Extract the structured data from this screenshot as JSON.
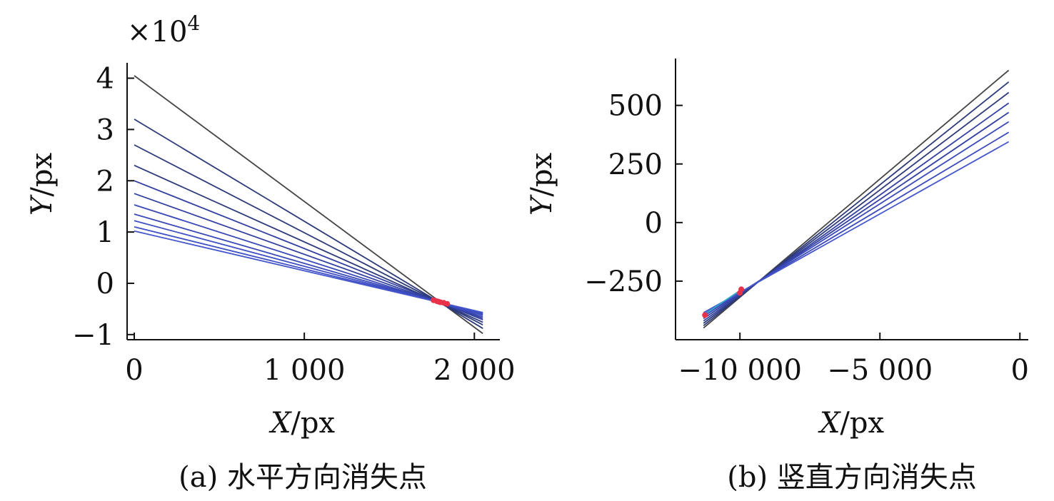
{
  "chart_data": [
    {
      "type": "line",
      "caption": "(a) 水平方向消失点",
      "xlabel_var": "X",
      "xlabel_unit": "/px",
      "ylabel_var": "Y",
      "ylabel_unit": "/px",
      "y_multiplier_prefix": "×10",
      "y_multiplier_exp": "4",
      "xlim": [
        0,
        2150
      ],
      "ylim": [
        -1.1,
        4.3
      ],
      "xticks": [
        0,
        1000,
        2000
      ],
      "xtick_labels": [
        "0",
        "1 000",
        "2 000"
      ],
      "yticks": [
        -1,
        0,
        1,
        2,
        3,
        4
      ],
      "ytick_labels": [
        "−1",
        "0",
        "1",
        "2",
        "3",
        "4"
      ],
      "grid": false,
      "legend": false,
      "series": [
        {
          "color": "#444444",
          "x": [
            0,
            2050
          ],
          "y": [
            4.05,
            -0.98
          ]
        },
        {
          "color": "#2d3a7a",
          "x": [
            0,
            2050
          ],
          "y": [
            3.2,
            -0.88
          ]
        },
        {
          "color": "#2d3a7a",
          "x": [
            0,
            2050
          ],
          "y": [
            2.7,
            -0.81
          ]
        },
        {
          "color": "#2d3a7a",
          "x": [
            0,
            2050
          ],
          "y": [
            2.3,
            -0.76
          ]
        },
        {
          "color": "#3340a0",
          "x": [
            0,
            2050
          ],
          "y": [
            2.0,
            -0.71
          ]
        },
        {
          "color": "#3340a0",
          "x": [
            0,
            2050
          ],
          "y": [
            1.75,
            -0.68
          ]
        },
        {
          "color": "#3a49b8",
          "x": [
            0,
            2050
          ],
          "y": [
            1.53,
            -0.65
          ]
        },
        {
          "color": "#3a49b8",
          "x": [
            0,
            2050
          ],
          "y": [
            1.35,
            -0.62
          ]
        },
        {
          "color": "#3f4fc4",
          "x": [
            0,
            2050
          ],
          "y": [
            1.22,
            -0.6
          ]
        },
        {
          "color": "#3f4fc4",
          "x": [
            0,
            2050
          ],
          "y": [
            1.1,
            -0.58
          ]
        },
        {
          "color": "#4456cc",
          "x": [
            0,
            2050
          ],
          "y": [
            1.02,
            -0.57
          ]
        }
      ],
      "markers": {
        "color": "#e8324a",
        "x": [
          1760,
          1780,
          1800,
          1820,
          1840,
          1790
        ],
        "y": [
          -0.33,
          -0.35,
          -0.37,
          -0.38,
          -0.4,
          -0.36
        ]
      }
    },
    {
      "type": "line",
      "caption": "(b) 竖直方向消失点",
      "xlabel_var": "X",
      "xlabel_unit": "/px",
      "ylabel_var": "Y",
      "ylabel_unit": "/px",
      "xlim": [
        -12300,
        300
      ],
      "ylim": [
        -500,
        700
      ],
      "xticks": [
        -10000,
        -5000,
        0
      ],
      "xtick_labels": [
        "−10 000",
        "−5 000",
        "0"
      ],
      "yticks": [
        -250,
        0,
        250,
        500
      ],
      "ytick_labels": [
        "−250",
        "0",
        "250",
        "500"
      ],
      "grid": false,
      "legend": false,
      "series": [
        {
          "color": "#444444",
          "x": [
            -11300,
            -400
          ],
          "y": [
            -450,
            650
          ]
        },
        {
          "color": "#2d3a7a",
          "x": [
            -11300,
            -400
          ],
          "y": [
            -440,
            600
          ]
        },
        {
          "color": "#2d3a7a",
          "x": [
            -11300,
            -400
          ],
          "y": [
            -430,
            555
          ]
        },
        {
          "color": "#3340a0",
          "x": [
            -11300,
            -400
          ],
          "y": [
            -420,
            510
          ]
        },
        {
          "color": "#3340a0",
          "x": [
            -11300,
            -400
          ],
          "y": [
            -410,
            470
          ]
        },
        {
          "color": "#3a49b8",
          "x": [
            -11300,
            -400
          ],
          "y": [
            -400,
            430
          ]
        },
        {
          "color": "#3a49b8",
          "x": [
            -11300,
            -400
          ],
          "y": [
            -392,
            385
          ]
        },
        {
          "color": "#4456cc",
          "x": [
            -11300,
            -400
          ],
          "y": [
            -385,
            345
          ]
        },
        {
          "color": "#30a8c8",
          "x": [
            -11300,
            -10000
          ],
          "y": [
            -395,
            -290
          ]
        }
      ],
      "markers": {
        "color": "#e8324a",
        "x": [
          -11250,
          -10000,
          -9950
        ],
        "y": [
          -395,
          -300,
          -285
        ]
      }
    }
  ]
}
